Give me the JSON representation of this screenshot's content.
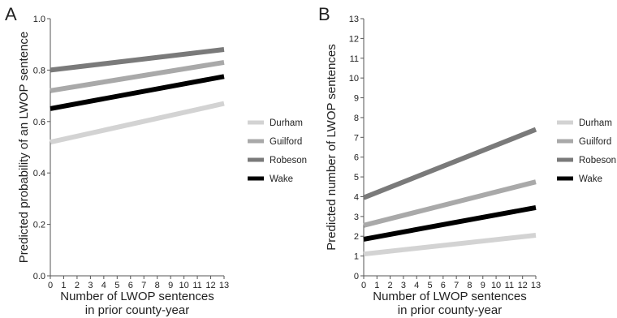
{
  "chart_data": [
    {
      "panel_label": "A",
      "type": "line",
      "xlabel": "Number of LWOP sentences",
      "xlabel_line2": "in prior county-year",
      "ylabel": "Predicted probability of an LWOP sentence",
      "xlim": [
        0,
        13
      ],
      "ylim": [
        0,
        1.0
      ],
      "xticks": [
        "0",
        "1",
        "2",
        "3",
        "4",
        "5",
        "6",
        "7",
        "8",
        "9",
        "10",
        "11",
        "12",
        "13"
      ],
      "yticks": [
        "0.0",
        "0.2",
        "0.4",
        "0.6",
        "0.8",
        "1.0"
      ],
      "grid": false,
      "legend_position": "right",
      "series": [
        {
          "name": "Durham",
          "color": "#d3d3d3",
          "x": [
            0,
            13
          ],
          "y": [
            0.52,
            0.67
          ]
        },
        {
          "name": "Guilford",
          "color": "#a9a9a9",
          "x": [
            0,
            13
          ],
          "y": [
            0.72,
            0.83
          ]
        },
        {
          "name": "Robeson",
          "color": "#7a7a7a",
          "x": [
            0,
            13
          ],
          "y": [
            0.8,
            0.88
          ]
        },
        {
          "name": "Wake",
          "color": "#000000",
          "x": [
            0,
            13
          ],
          "y": [
            0.65,
            0.775
          ]
        }
      ]
    },
    {
      "panel_label": "B",
      "type": "line",
      "xlabel": "Number of LWOP sentences",
      "xlabel_line2": "in prior county-year",
      "ylabel": "Predicted number of LWOP sentences",
      "xlim": [
        0,
        13
      ],
      "ylim": [
        0,
        13
      ],
      "xticks": [
        "0",
        "1",
        "2",
        "3",
        "4",
        "5",
        "6",
        "7",
        "8",
        "9",
        "10",
        "11",
        "12",
        "13"
      ],
      "yticks": [
        "0",
        "1",
        "2",
        "3",
        "4",
        "5",
        "6",
        "7",
        "8",
        "9",
        "10",
        "11",
        "12",
        "13"
      ],
      "grid": false,
      "legend_position": "right",
      "series": [
        {
          "name": "Durham",
          "color": "#d3d3d3",
          "x": [
            0,
            13
          ],
          "y": [
            1.1,
            2.05
          ]
        },
        {
          "name": "Guilford",
          "color": "#a9a9a9",
          "x": [
            0,
            13
          ],
          "y": [
            2.55,
            4.75
          ]
        },
        {
          "name": "Robeson",
          "color": "#7a7a7a",
          "x": [
            0,
            13
          ],
          "y": [
            3.95,
            7.4
          ]
        },
        {
          "name": "Wake",
          "color": "#000000",
          "x": [
            0,
            13
          ],
          "y": [
            1.85,
            3.45
          ]
        }
      ]
    }
  ]
}
